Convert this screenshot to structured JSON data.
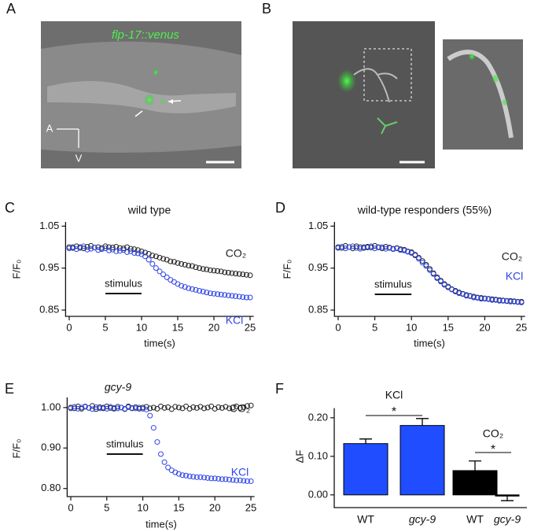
{
  "panel_labels": [
    "A",
    "B",
    "C",
    "D",
    "E",
    "F"
  ],
  "micrograph": {
    "label": "flp-17::venus",
    "axis_labels": [
      "A",
      "V"
    ]
  },
  "chart_data": [
    {
      "type": "scatter",
      "title": "wild type",
      "y_label": "F/F₀",
      "x_label": "time(s)",
      "stimulus": {
        "label": "stimulus",
        "x": [
          5,
          10
        ]
      },
      "x": [
        0,
        0.5,
        1,
        1.5,
        2,
        2.5,
        3,
        3.5,
        4,
        4.5,
        5,
        5.5,
        6,
        6.5,
        7,
        7.5,
        8,
        8.5,
        9,
        9.5,
        10,
        10.5,
        11,
        11.5,
        12,
        12.5,
        13,
        13.5,
        14,
        14.5,
        15,
        15.5,
        16,
        16.5,
        17,
        17.5,
        18,
        18.5,
        19,
        19.5,
        20,
        20.5,
        21,
        21.5,
        22,
        22.5,
        23,
        23.5,
        24,
        24.5,
        25
      ],
      "xlim": [
        -0.5,
        25.5
      ],
      "xticks": [
        0,
        5,
        10,
        15,
        20,
        25
      ],
      "ylim": [
        0.835,
        1.06
      ],
      "yticks": [
        0.85,
        0.95,
        1.05
      ],
      "series": [
        {
          "name": "CO₂",
          "color": "#222222",
          "values": [
            1.0,
            0.998,
            1.002,
            1.0,
            0.997,
            1.001,
            1.003,
            0.999,
            1.0,
            0.998,
            1.002,
            1.0,
            0.999,
            1.001,
            0.998,
            0.997,
            1.0,
            0.996,
            0.995,
            0.993,
            0.99,
            0.987,
            0.984,
            0.98,
            0.978,
            0.975,
            0.972,
            0.97,
            0.966,
            0.965,
            0.962,
            0.96,
            0.958,
            0.956,
            0.955,
            0.952,
            0.95,
            0.948,
            0.947,
            0.945,
            0.944,
            0.943,
            0.942,
            0.94,
            0.939,
            0.938,
            0.937,
            0.936,
            0.935,
            0.934,
            0.933
          ]
        },
        {
          "name": "KCl",
          "color": "#2e44e6",
          "values": [
            0.997,
            1.0,
            0.995,
            0.998,
            1.002,
            0.994,
            0.996,
            0.999,
            0.993,
            0.995,
            0.997,
            0.992,
            0.994,
            0.99,
            0.991,
            0.993,
            0.988,
            0.99,
            0.986,
            0.985,
            0.983,
            0.978,
            0.97,
            0.96,
            0.95,
            0.942,
            0.935,
            0.928,
            0.922,
            0.917,
            0.912,
            0.908,
            0.905,
            0.902,
            0.9,
            0.898,
            0.896,
            0.894,
            0.892,
            0.89,
            0.889,
            0.888,
            0.887,
            0.886,
            0.885,
            0.884,
            0.883,
            0.882,
            0.881,
            0.88,
            0.88
          ]
        }
      ]
    },
    {
      "type": "scatter",
      "title": "wild-type responders (55%)",
      "y_label": "F/F₀",
      "x_label": "time(s)",
      "stimulus": {
        "label": "stimulus",
        "x": [
          5,
          10
        ]
      },
      "x": [
        0,
        0.5,
        1,
        1.5,
        2,
        2.5,
        3,
        3.5,
        4,
        4.5,
        5,
        5.5,
        6,
        6.5,
        7,
        7.5,
        8,
        8.5,
        9,
        9.5,
        10,
        10.5,
        11,
        11.5,
        12,
        12.5,
        13,
        13.5,
        14,
        14.5,
        15,
        15.5,
        16,
        16.5,
        17,
        17.5,
        18,
        18.5,
        19,
        19.5,
        20,
        20.5,
        21,
        21.5,
        22,
        22.5,
        23,
        23.5,
        24,
        24.5,
        25
      ],
      "xlim": [
        -0.5,
        25.5
      ],
      "xticks": [
        0,
        5,
        10,
        15,
        20,
        25
      ],
      "ylim": [
        0.835,
        1.06
      ],
      "yticks": [
        0.85,
        0.95,
        1.05
      ],
      "series": [
        {
          "name": "CO₂",
          "color": "#222222",
          "values": [
            1.0,
            0.998,
            1.003,
            1.0,
            0.997,
            1.002,
            1.0,
            0.998,
            1.001,
            0.999,
            1.003,
            1.0,
            0.997,
            1.001,
            0.999,
            0.996,
            0.998,
            0.995,
            0.994,
            0.99,
            0.988,
            0.982,
            0.975,
            0.967,
            0.958,
            0.948,
            0.938,
            0.928,
            0.92,
            0.912,
            0.906,
            0.9,
            0.896,
            0.892,
            0.889,
            0.886,
            0.884,
            0.882,
            0.88,
            0.879,
            0.878,
            0.877,
            0.876,
            0.875,
            0.874,
            0.873,
            0.872,
            0.872,
            0.871,
            0.87,
            0.87
          ]
        },
        {
          "name": "KCl",
          "color": "#2e44e6",
          "values": [
            0.998,
            1.001,
            0.997,
            1.0,
            1.002,
            0.998,
            0.996,
            1.0,
            0.999,
            1.002,
            0.997,
            0.999,
            1.0,
            0.996,
            0.998,
            0.995,
            0.997,
            0.993,
            0.992,
            0.989,
            0.986,
            0.98,
            0.972,
            0.963,
            0.955,
            0.945,
            0.936,
            0.926,
            0.918,
            0.91,
            0.904,
            0.899,
            0.894,
            0.89,
            0.888,
            0.884,
            0.883,
            0.88,
            0.879,
            0.877,
            0.877,
            0.876,
            0.874,
            0.874,
            0.872,
            0.872,
            0.871,
            0.87,
            0.87,
            0.869,
            0.868
          ]
        }
      ]
    },
    {
      "type": "scatter",
      "title": "gcy-9",
      "y_label": "F/F₀",
      "x_label": "time(s)",
      "stimulus": {
        "label": "stimulus",
        "x": [
          5,
          10
        ]
      },
      "x": [
        0,
        0.5,
        1,
        1.5,
        2,
        2.5,
        3,
        3.5,
        4,
        4.5,
        5,
        5.5,
        6,
        6.5,
        7,
        7.5,
        8,
        8.5,
        9,
        9.5,
        10,
        10.5,
        11,
        11.5,
        12,
        12.5,
        13,
        13.5,
        14,
        14.5,
        15,
        15.5,
        16,
        16.5,
        17,
        17.5,
        18,
        18.5,
        19,
        19.5,
        20,
        20.5,
        21,
        21.5,
        22,
        22.5,
        23,
        23.5,
        24,
        24.5,
        25
      ],
      "xlim": [
        -0.5,
        25.5
      ],
      "xticks": [
        0,
        5,
        10,
        15,
        20,
        25
      ],
      "ylim": [
        0.78,
        1.025
      ],
      "yticks": [
        {
          "value": 0.8,
          "label": "0.80"
        },
        {
          "value": 0.9,
          "label": "0.90"
        },
        {
          "value": 1.0,
          "label": "1.00"
        }
      ],
      "series": [
        {
          "name": "CO₂",
          "color": "#222222",
          "values": [
            1.0,
            0.998,
            1.003,
            0.997,
            1.002,
            0.999,
            1.004,
            0.996,
            1.001,
            0.998,
            1.003,
            0.999,
            0.997,
            1.002,
            1.0,
            0.996,
            1.003,
            0.998,
            1.001,
            0.997,
            1.0,
            1.002,
            0.998,
            1.0,
            0.997,
            1.003,
            0.999,
            1.001,
            0.996,
            1.002,
            1.0,
            0.998,
            1.003,
            0.997,
            1.001,
            0.999,
            1.002,
            0.998,
            1.0,
            1.003,
            0.997,
            1.001,
            0.999,
            1.002,
            0.998,
            1.0,
            1.003,
            0.999,
            1.001,
            1.004,
            1.005
          ]
        },
        {
          "name": "KCl",
          "color": "#2e44e6",
          "values": [
            0.998,
            1.002,
            0.997,
            1.0,
            1.003,
            0.999,
            0.996,
            1.001,
            0.998,
            1.0,
            0.997,
            1.002,
            0.999,
            0.998,
            1.0,
            0.997,
            1.001,
            0.999,
            0.998,
            1.0,
            0.997,
            0.995,
            0.98,
            0.95,
            0.915,
            0.885,
            0.865,
            0.852,
            0.845,
            0.84,
            0.836,
            0.833,
            0.832,
            0.83,
            0.829,
            0.828,
            0.828,
            0.827,
            0.826,
            0.825,
            0.825,
            0.824,
            0.823,
            0.823,
            0.822,
            0.821,
            0.82,
            0.82,
            0.819,
            0.818,
            0.818
          ]
        }
      ]
    },
    {
      "type": "bar",
      "y_label": "ΔF",
      "categories": [
        "WT",
        "gcy-9",
        "WT",
        "gcy-9"
      ],
      "values": [
        0.133,
        0.18,
        0.063,
        -0.003
      ],
      "errors": [
        0.012,
        0.018,
        0.025,
        0.012
      ],
      "colors": [
        "#1f4dff",
        "#1f4dff",
        "#000000",
        "#000000"
      ],
      "group_labels": [
        "KCl",
        "CO₂"
      ],
      "significance": [
        "*",
        "*"
      ],
      "ylim": [
        -0.033,
        0.225
      ],
      "yticks": [
        {
          "value": 0.0,
          "label": "0.00"
        },
        {
          "value": 0.1,
          "label": "0.10"
        },
        {
          "value": 0.2,
          "label": "0.20"
        }
      ]
    }
  ]
}
